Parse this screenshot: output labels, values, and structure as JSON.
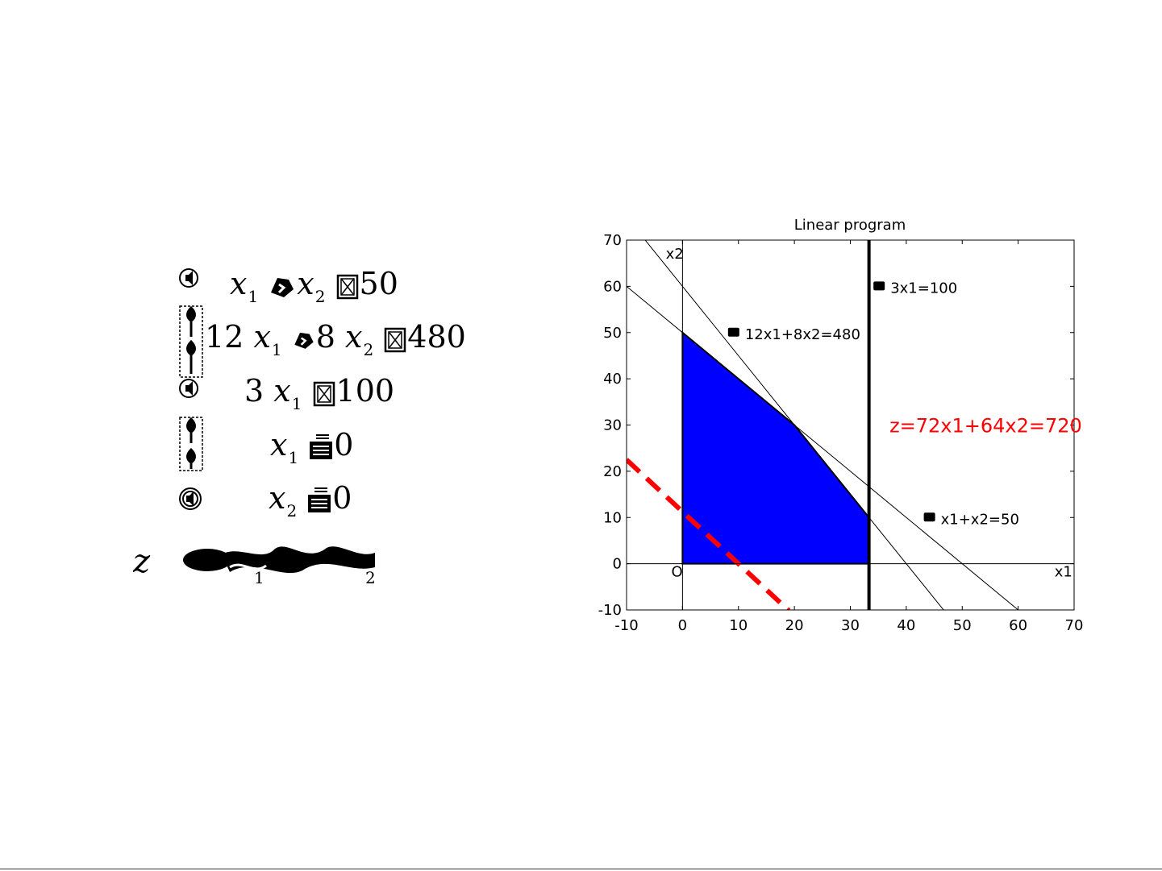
{
  "formulas": {
    "rows": [
      {
        "pre": "",
        "v1": "x",
        "s1": "1",
        "op": "",
        "v2": "x",
        "s2": "2",
        "rel": "",
        "rhs": "50"
      },
      {
        "pre": "12",
        "v1": "x",
        "s1": "1",
        "op": "8",
        "v2": "x",
        "s2": "2",
        "rel": "",
        "rhs": "480"
      },
      {
        "pre": "3",
        "v1": "x",
        "s1": "1",
        "rel": "",
        "rhs": "100"
      },
      {
        "v1": "x",
        "s1": "1",
        "rel": "",
        "rhs": "0"
      },
      {
        "v1": "x",
        "s1": "2",
        "rel": "",
        "rhs": "0"
      }
    ],
    "objective": {
      "lhs": "z",
      "sub1": "1",
      "sub2": "2"
    }
  },
  "chart_data": {
    "type": "line",
    "title": "Linear program",
    "xlabel": "x1",
    "ylabel": "x2",
    "origin_label": "O",
    "xlim": [
      -10,
      70
    ],
    "ylim": [
      -10,
      70
    ],
    "xticks": [
      "-10",
      "0",
      "10",
      "20",
      "30",
      "40",
      "50",
      "60",
      "70"
    ],
    "yticks": [
      "-10",
      "0",
      "10",
      "20",
      "30",
      "40",
      "50",
      "60",
      "70"
    ],
    "constraints": [
      {
        "name": "12x1+8x2=480",
        "a": 12,
        "b": 8,
        "c": 480,
        "label_at": [
          9,
          50
        ]
      },
      {
        "name": "x1+x2=50",
        "a": 1,
        "b": 1,
        "c": 50,
        "label_at": [
          44,
          10
        ]
      },
      {
        "name": "3x1=100",
        "a": 3,
        "b": 0,
        "c": 100,
        "label_at": [
          35,
          60
        ]
      }
    ],
    "feasible_region": [
      [
        0,
        0
      ],
      [
        0,
        50
      ],
      [
        20,
        30
      ],
      [
        33.33,
        10
      ],
      [
        33.33,
        0
      ]
    ],
    "objective": {
      "name": "z=72x1+64x2=720",
      "a": 72,
      "b": 64,
      "c": 720,
      "x_range": [
        -10,
        19
      ],
      "label_at": [
        37,
        30
      ],
      "color": "#ff0000"
    },
    "region_color": "#0000ff",
    "grid": false
  }
}
